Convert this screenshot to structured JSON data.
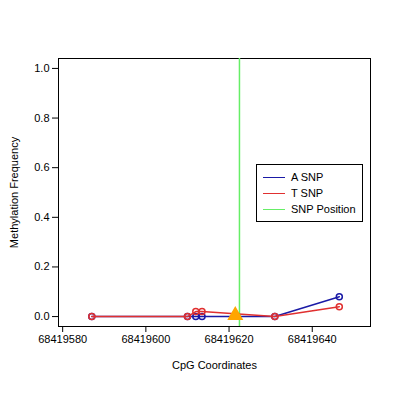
{
  "chart_data": {
    "type": "line",
    "x_label": "CpG Coordinates",
    "y_label": "Methylation Frequency",
    "xlim": [
      68419579,
      68419654
    ],
    "xticks": [
      68419580,
      68419600,
      68419620,
      68419640
    ],
    "ylim": [
      -0.04,
      1.04
    ],
    "yticks": [
      {
        "value": 0,
        "label": "0.0"
      },
      {
        "value": 0.2,
        "label": "0.2"
      },
      {
        "value": 0.4,
        "label": "0.4"
      },
      {
        "value": 0.6,
        "label": "0.6"
      },
      {
        "value": 0.8,
        "label": "0.8"
      },
      {
        "value": 1,
        "label": "1.0"
      }
    ],
    "legend": "right",
    "marker": "circle",
    "x": [
      68419587,
      68419610,
      68419612,
      68419613.5,
      68419631,
      68419646.5
    ],
    "series": [
      {
        "name": "A SNP",
        "color": "#1a1aa6",
        "values": [
          0,
          0,
          0,
          0,
          0,
          0.08
        ]
      },
      {
        "name": "T SNP",
        "color": "#e03030",
        "values": [
          0,
          0,
          0.02,
          0.02,
          0,
          0.04
        ]
      }
    ],
    "snp_position": {
      "name": "SNP Position",
      "x": 68419622.5,
      "color": "#66ee66"
    },
    "snp_marker": {
      "x": 68419621.5,
      "y": 0.005,
      "color": "#ffa500",
      "marker": "triangle"
    }
  }
}
